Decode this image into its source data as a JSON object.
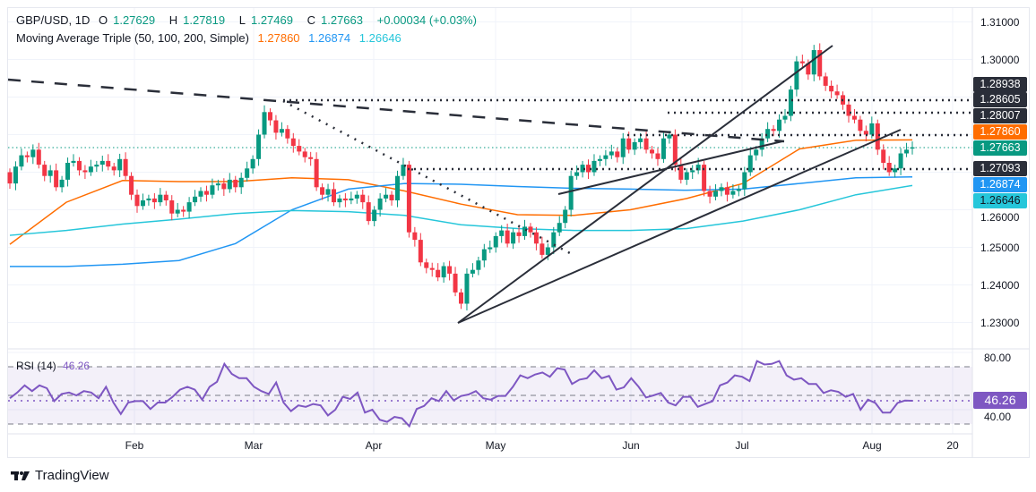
{
  "header": {
    "symbol": "GBP/USD, 1D",
    "open_label": "O",
    "open": "1.27629",
    "high_label": "H",
    "high": "1.27819",
    "low_label": "L",
    "low": "1.27469",
    "close_label": "C",
    "close": "1.27663",
    "change": "+0.00034 (+0.03%)",
    "ma_title": "Moving Average Triple (50, 100, 200, Simple)",
    "ma50": "1.27860",
    "ma100": "1.26874",
    "ma200": "1.26646"
  },
  "rsi_legend": {
    "title": "RSI (14)",
    "value": "46.26"
  },
  "price_axis": [
    "1.31000",
    "1.30000",
    "1.26000",
    "1.25000",
    "1.24000",
    "1.23000"
  ],
  "rsi_axis": [
    "80.00",
    "40.00"
  ],
  "time_axis": [
    "Feb",
    "Mar",
    "Apr",
    "May",
    "Jun",
    "Jul",
    "Aug",
    "20"
  ],
  "price_labels": [
    {
      "text": "1.28938",
      "bg": "#2a2e39",
      "fg": "#ffffff"
    },
    {
      "text": "1.28605",
      "bg": "#2a2e39",
      "fg": "#ffffff"
    },
    {
      "text": "1.28007",
      "bg": "#2a2e39",
      "fg": "#ffffff"
    },
    {
      "text": "1.27860",
      "bg": "#ff6d00",
      "fg": "#ffffff"
    },
    {
      "text": "1.27663",
      "bg": "#089981",
      "fg": "#ffffff"
    },
    {
      "text": "1.27093",
      "bg": "#2a2e39",
      "fg": "#ffffff"
    },
    {
      "text": "1.26874",
      "bg": "#2196f3",
      "fg": "#ffffff"
    },
    {
      "text": "1.26646",
      "bg": "#26c6da",
      "fg": "#131722"
    }
  ],
  "rsi_label": {
    "text": "46.26",
    "bg": "#7e57c2",
    "fg": "#ffffff"
  },
  "branding": "TradingView",
  "colors": {
    "up": "#089981",
    "down": "#f23645",
    "ma50": "#ff6d00",
    "ma100": "#2196f3",
    "ma200": "#26c6da",
    "rsi": "#7e57c2"
  },
  "chart_data": {
    "type": "candlestick",
    "symbol": "GBP/USD",
    "interval": "1D",
    "ylim": [
      1.23,
      1.31
    ],
    "last_candle": {
      "open": 1.27629,
      "high": 1.27819,
      "low": 1.27469,
      "close": 1.27663
    },
    "close": [
      1.267,
      1.2715,
      1.2745,
      1.274,
      1.276,
      1.272,
      1.269,
      1.2705,
      1.266,
      1.268,
      1.2725,
      1.273,
      1.2705,
      1.27,
      1.2715,
      1.272,
      1.273,
      1.2715,
      1.2705,
      1.2735,
      1.269,
      1.264,
      1.261,
      1.2625,
      1.263,
      1.262,
      1.264,
      1.2625,
      1.259,
      1.26,
      1.2595,
      1.262,
      1.2635,
      1.265,
      1.264,
      1.2665,
      1.267,
      1.2655,
      1.268,
      1.266,
      1.2685,
      1.271,
      1.2735,
      1.28,
      1.286,
      1.2838,
      1.2805,
      1.2815,
      1.279,
      1.277,
      1.2755,
      1.274,
      1.2735,
      1.266,
      1.264,
      1.2655,
      1.262,
      1.263,
      1.2625,
      1.263,
      1.264,
      1.262,
      1.257,
      1.26,
      1.263,
      1.264,
      1.2625,
      1.269,
      1.272,
      1.254,
      1.252,
      1.246,
      1.2445,
      1.244,
      1.242,
      1.245,
      1.243,
      1.238,
      1.235,
      1.243,
      1.244,
      1.2465,
      1.2495,
      1.25,
      1.253,
      1.2545,
      1.251,
      1.254,
      1.253,
      1.2555,
      1.254,
      1.251,
      1.248,
      1.25,
      1.254,
      1.2565,
      1.26,
      1.269,
      1.27,
      1.272,
      1.27,
      1.273,
      1.2735,
      1.2745,
      1.2755,
      1.274,
      1.279,
      1.276,
      1.278,
      1.279,
      1.276,
      1.275,
      1.2735,
      1.279,
      1.28,
      1.272,
      1.268,
      1.27,
      1.2705,
      1.272,
      1.265,
      1.2635,
      1.265,
      1.266,
      1.264,
      1.265,
      1.2655,
      1.27,
      1.2745,
      1.276,
      1.279,
      1.2815,
      1.281,
      1.284,
      1.285,
      1.292,
      1.2995,
      1.299,
      1.296,
      1.3025,
      1.2955,
      1.293,
      1.2915,
      1.2905,
      1.288,
      1.285,
      1.284,
      1.281,
      1.28,
      1.283,
      1.276,
      1.2725,
      1.27,
      1.271,
      1.275,
      1.276,
      1.27663
    ],
    "moving_averages": [
      {
        "name": "MA 50",
        "values": [
          1.2508,
          1.262,
          1.2678,
          1.2675,
          1.2675,
          1.2685,
          1.268,
          1.265,
          1.2615,
          1.2587,
          1.2585,
          1.26,
          1.263,
          1.267,
          1.2762,
          1.2785,
          1.2786
        ]
      },
      {
        "name": "MA 100",
        "values": [
          1.2449,
          1.2449,
          1.2455,
          1.2465,
          1.251,
          1.26,
          1.2655,
          1.267,
          1.2668,
          1.2662,
          1.2657,
          1.2655,
          1.2652,
          1.2655,
          1.267,
          1.2685,
          1.26874
        ]
      },
      {
        "name": "MA 200",
        "values": [
          1.2532,
          1.2545,
          1.2562,
          1.2575,
          1.259,
          1.2598,
          1.2595,
          1.2585,
          1.256,
          1.255,
          1.2545,
          1.2545,
          1.255,
          1.257,
          1.26,
          1.264,
          1.26646
        ]
      }
    ],
    "horizontal_levels": [
      1.28938,
      1.28605,
      1.28007,
      1.27093
    ],
    "rsi": {
      "period": 14,
      "ylim": [
        20,
        85
      ],
      "bands": [
        70,
        50,
        30
      ],
      "values": [
        48,
        52,
        57,
        53,
        57,
        55,
        46,
        51,
        52,
        50,
        53,
        52,
        48,
        56,
        45,
        37,
        45,
        46,
        46,
        40.5,
        45,
        45,
        49,
        54,
        56,
        54,
        47,
        56,
        59.5,
        72,
        65,
        62,
        62,
        56,
        53,
        51,
        59,
        45,
        39,
        43,
        42,
        44,
        43,
        36,
        40,
        49,
        47.5,
        52,
        38,
        40,
        33,
        31.5,
        35,
        34,
        28.5,
        40.5,
        42.6,
        48,
        46,
        53,
        46.5,
        49.6,
        50.6,
        53,
        48,
        47,
        49.6,
        49.6,
        56,
        64,
        62,
        64.6,
        66,
        63,
        69,
        68,
        58,
        61,
        62,
        67.5,
        62,
        63.6,
        54,
        55.6,
        62,
        56,
        48.5,
        50,
        51.7,
        45,
        43,
        49,
        49,
        42,
        44,
        46,
        57,
        59,
        64,
        63,
        60,
        74,
        71.6,
        72,
        74,
        64,
        61,
        62,
        58,
        58,
        51.7,
        53.6,
        52.5,
        49,
        51,
        40,
        47,
        44.7,
        38,
        38,
        44.7,
        46.4,
        46.26
      ]
    }
  }
}
